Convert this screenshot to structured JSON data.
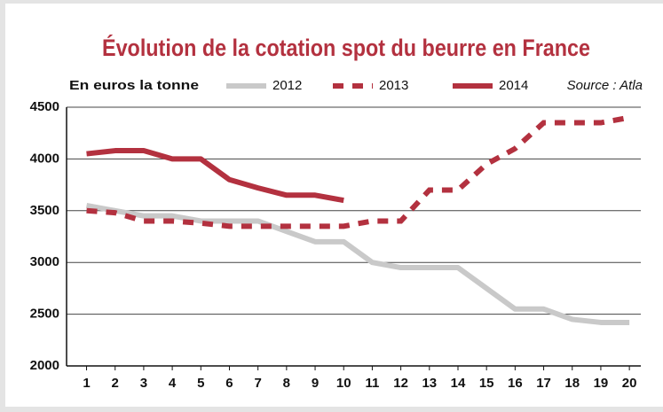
{
  "chart_data": {
    "type": "line",
    "title": "Évolution de la cotation spot du beurre en France",
    "y_label": "En euros la tonne",
    "source": "Source : Atla",
    "x": [
      1,
      2,
      3,
      4,
      5,
      6,
      7,
      8,
      9,
      10,
      11,
      12,
      13,
      14,
      15,
      16,
      17,
      18,
      19,
      20
    ],
    "xlim": [
      0.3,
      20.4
    ],
    "ylim": [
      2000,
      4500
    ],
    "yticks": [
      2000,
      2500,
      3000,
      3500,
      4000,
      4500
    ],
    "grid": true,
    "series": [
      {
        "name": "2012",
        "color": "#c9c9c9",
        "line_style": "solid",
        "values": [
          3550,
          3500,
          3450,
          3450,
          3400,
          3400,
          3400,
          3300,
          3200,
          3200,
          3000,
          2950,
          2950,
          2950,
          2750,
          2550,
          2550,
          2450,
          2420,
          2420
        ]
      },
      {
        "name": "2013",
        "color": "#b3313f",
        "line_style": "dotted",
        "values": [
          3500,
          3480,
          3400,
          3400,
          3380,
          3350,
          3350,
          3350,
          3350,
          3350,
          3400,
          3400,
          3700,
          3700,
          3950,
          4100,
          4350,
          4350,
          4350,
          4400
        ]
      },
      {
        "name": "2014",
        "color": "#b3313f",
        "line_style": "solid",
        "values": [
          4050,
          4080,
          4080,
          4000,
          4000,
          3800,
          3720,
          3650,
          3650,
          3600,
          null,
          null,
          null,
          null,
          null,
          null,
          null,
          null,
          null,
          null
        ]
      }
    ]
  }
}
